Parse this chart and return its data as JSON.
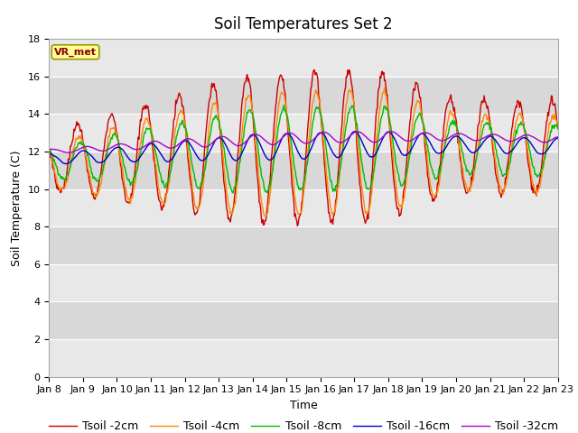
{
  "title": "Soil Temperatures Set 2",
  "xlabel": "Time",
  "ylabel": "Soil Temperature (C)",
  "ylim": [
    0,
    18
  ],
  "yticks": [
    0,
    2,
    4,
    6,
    8,
    10,
    12,
    14,
    16,
    18
  ],
  "x_tick_labels": [
    "Jan 8",
    "Jan 9",
    "Jan 10",
    "Jan 11",
    "Jan 12",
    "Jan 13",
    "Jan 14",
    "Jan 15",
    "Jan 16",
    "Jan 17",
    "Jan 18",
    "Jan 19",
    "Jan 20",
    "Jan 21",
    "Jan 22",
    "Jan 23"
  ],
  "series_colors": [
    "#cc0000",
    "#ff8800",
    "#00bb00",
    "#0000cc",
    "#aa00cc"
  ],
  "series_labels": [
    "Tsoil -2cm",
    "Tsoil -4cm",
    "Tsoil -8cm",
    "Tsoil -16cm",
    "Tsoil -32cm"
  ],
  "plot_bg_color": "#e8e8e8",
  "fig_bg_color": "#ffffff",
  "annotation_text": "VR_met",
  "annotation_bg": "#ffff99",
  "annotation_border": "#999900",
  "grid_color": "#ffffff",
  "title_fontsize": 12,
  "label_fontsize": 9,
  "tick_fontsize": 8,
  "legend_fontsize": 9
}
